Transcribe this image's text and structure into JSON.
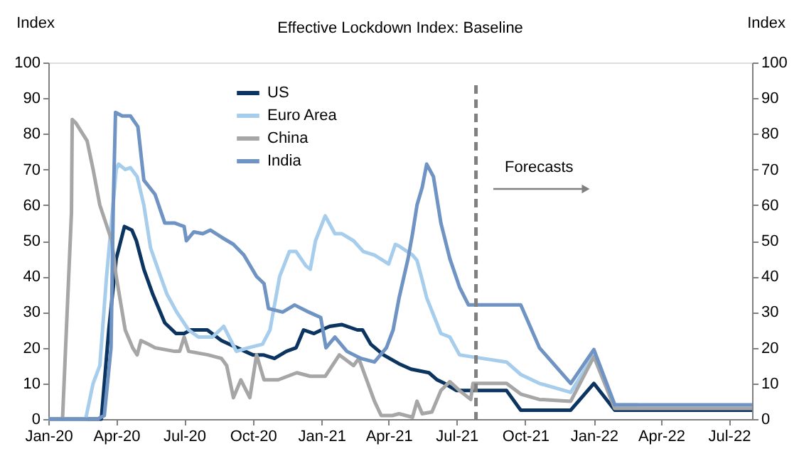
{
  "chart_data": {
    "type": "line",
    "title": "Effective Lockdown Index: Baseline",
    "ylabel": "Index",
    "y2label": "Index",
    "xlim": [
      "2020-01-01",
      "2022-08-01"
    ],
    "xticks": [
      {
        "value": "2020-01-01",
        "label": "Jan-20"
      },
      {
        "value": "2020-04-01",
        "label": "Apr-20"
      },
      {
        "value": "2020-07-01",
        "label": "Jul-20"
      },
      {
        "value": "2020-10-01",
        "label": "Oct-20"
      },
      {
        "value": "2021-01-01",
        "label": "Jan-21"
      },
      {
        "value": "2021-04-01",
        "label": "Apr-21"
      },
      {
        "value": "2021-07-01",
        "label": "Jul-21"
      },
      {
        "value": "2021-10-01",
        "label": "Oct-21"
      },
      {
        "value": "2022-01-01",
        "label": "Jan-22"
      },
      {
        "value": "2022-04-01",
        "label": "Apr-22"
      },
      {
        "value": "2022-07-01",
        "label": "Jul-22"
      }
    ],
    "ylim": [
      0,
      100
    ],
    "yticks": [
      0,
      10,
      20,
      30,
      40,
      50,
      60,
      70,
      80,
      90,
      100
    ],
    "y2lim": [
      0,
      100
    ],
    "y2ticks": [
      0,
      10,
      20,
      30,
      40,
      50,
      60,
      70,
      80,
      90,
      100
    ],
    "grid": false,
    "legend": "top left",
    "marker": "none",
    "line_style": "solid",
    "ref_lines": [
      {
        "axis": "x",
        "value": "2021-07-27",
        "color": "#808080",
        "line_style": "dashed"
      }
    ],
    "annotations": [
      "Forecasts"
    ],
    "series": [
      {
        "name": "US",
        "color": "#0b3560",
        "x": [
          "2020-01-01",
          "2020-03-12",
          "2020-03-22",
          "2020-04-01",
          "2020-04-12",
          "2020-04-22",
          "2020-04-28",
          "2020-05-08",
          "2020-05-20",
          "2020-06-05",
          "2020-06-20",
          "2020-07-01",
          "2020-07-10",
          "2020-08-01",
          "2020-08-20",
          "2020-09-10",
          "2020-10-01",
          "2020-10-15",
          "2020-10-30",
          "2020-11-15",
          "2020-11-28",
          "2020-12-08",
          "2020-12-22",
          "2021-01-01",
          "2021-01-12",
          "2021-01-28",
          "2021-02-18",
          "2021-02-25",
          "2021-03-08",
          "2021-03-25",
          "2021-04-15",
          "2021-05-01",
          "2021-05-25",
          "2021-06-05",
          "2021-06-15",
          "2021-07-01",
          "2021-09-06",
          "2021-09-25",
          "2021-12-01",
          "2022-01-01",
          "2022-01-29",
          "2022-08-01"
        ],
        "values": [
          0,
          0,
          25,
          45,
          54,
          53,
          50,
          42,
          35,
          27,
          24,
          24,
          25,
          25,
          22,
          20,
          18,
          18,
          17,
          19,
          20,
          25,
          24,
          25,
          26,
          26.5,
          25,
          25,
          21,
          18,
          15.5,
          14,
          13,
          11,
          10,
          8,
          8,
          2.5,
          2.5,
          10,
          2.5,
          2.5
        ]
      },
      {
        "name": "Euro Area",
        "color": "#a7cdec",
        "x": [
          "2020-01-01",
          "2020-02-20",
          "2020-03-01",
          "2020-03-10",
          "2020-03-19",
          "2020-04-01",
          "2020-04-04",
          "2020-04-13",
          "2020-04-20",
          "2020-04-29",
          "2020-05-08",
          "2020-05-17",
          "2020-05-27",
          "2020-06-08",
          "2020-06-21",
          "2020-07-07",
          "2020-07-20",
          "2020-08-08",
          "2020-08-23",
          "2020-09-09",
          "2020-09-25",
          "2020-10-14",
          "2020-10-24",
          "2020-11-06",
          "2020-11-19",
          "2020-11-28",
          "2020-12-11",
          "2020-12-17",
          "2020-12-24",
          "2021-01-06",
          "2021-01-19",
          "2021-01-28",
          "2021-02-13",
          "2021-02-26",
          "2021-03-13",
          "2021-04-01",
          "2021-04-10",
          "2021-04-15",
          "2021-05-03",
          "2021-05-09",
          "2021-05-16",
          "2021-05-22",
          "2021-06-10",
          "2021-06-22",
          "2021-07-05",
          "2021-07-20",
          "2021-09-06",
          "2021-09-25",
          "2021-10-20",
          "2021-12-01",
          "2022-01-01",
          "2022-01-29",
          "2022-03-01"
        ],
        "values": [
          0,
          0,
          10,
          15,
          40,
          70,
          71.5,
          70,
          70.5,
          68,
          60,
          48,
          42,
          35,
          30,
          25,
          23,
          23,
          26,
          19,
          20,
          21,
          25,
          40,
          47,
          47,
          43,
          42,
          50,
          57,
          52,
          52,
          50,
          47,
          46,
          43.5,
          49,
          48.5,
          46,
          44.5,
          39,
          34,
          24,
          23,
          18,
          17.5,
          16,
          12.5,
          10,
          7.5,
          18,
          4,
          4
        ]
      },
      {
        "name": "China",
        "color": "#a6a6a6",
        "x": [
          "2020-01-01",
          "2020-01-20",
          "2020-02-01",
          "2020-02-02",
          "2020-02-07",
          "2020-02-16",
          "2020-02-22",
          "2020-03-01",
          "2020-03-10",
          "2020-03-26",
          "2020-04-01",
          "2020-04-13",
          "2020-04-23",
          "2020-04-29",
          "2020-05-04",
          "2020-05-14",
          "2020-05-23",
          "2020-06-18",
          "2020-06-25",
          "2020-07-01",
          "2020-07-07",
          "2020-08-02",
          "2020-08-20",
          "2020-08-27",
          "2020-09-05",
          "2020-09-15",
          "2020-09-27",
          "2020-10-06",
          "2020-10-16",
          "2020-11-04",
          "2020-11-29",
          "2020-12-17",
          "2021-01-06",
          "2021-01-25",
          "2021-02-13",
          "2021-02-20",
          "2021-03-13",
          "2021-03-22",
          "2021-04-06",
          "2021-04-15",
          "2021-05-03",
          "2021-05-09",
          "2021-05-16",
          "2021-05-29",
          "2021-06-10",
          "2021-06-22",
          "2021-07-05",
          "2021-07-20",
          "2021-07-23",
          "2021-09-06",
          "2021-09-25",
          "2021-10-20",
          "2021-12-01",
          "2022-01-01",
          "2022-01-29",
          "2022-08-01"
        ],
        "values": [
          0,
          0,
          58,
          84,
          83,
          80,
          78,
          70,
          60,
          50,
          40,
          25,
          20,
          18,
          22,
          21,
          20,
          19,
          19,
          23,
          19,
          18,
          17,
          15,
          6,
          11,
          6,
          18,
          11,
          11,
          13,
          12,
          12,
          18,
          15,
          17,
          5,
          1,
          1,
          1.5,
          0.5,
          5,
          1.5,
          2,
          8,
          10.5,
          8,
          5.5,
          10,
          10,
          7,
          5.5,
          5,
          17.5,
          3,
          3
        ]
      },
      {
        "name": "India",
        "color": "#6f93c3",
        "x": [
          "2020-01-01",
          "2020-03-07",
          "2020-03-16",
          "2020-03-25",
          "2020-03-28",
          "2020-03-31",
          "2020-04-09",
          "2020-04-20",
          "2020-04-30",
          "2020-05-08",
          "2020-05-23",
          "2020-06-05",
          "2020-06-18",
          "2020-07-01",
          "2020-07-04",
          "2020-07-14",
          "2020-07-26",
          "2020-08-05",
          "2020-08-20",
          "2020-09-05",
          "2020-09-19",
          "2020-10-06",
          "2020-10-16",
          "2020-10-22",
          "2020-11-10",
          "2020-11-26",
          "2020-12-15",
          "2020-12-31",
          "2021-01-07",
          "2021-01-19",
          "2021-02-04",
          "2021-02-23",
          "2021-03-13",
          "2021-03-29",
          "2021-04-07",
          "2021-04-15",
          "2021-04-27",
          "2021-05-03",
          "2021-05-09",
          "2021-05-16",
          "2021-05-22",
          "2021-05-31",
          "2021-06-10",
          "2021-06-22",
          "2021-07-05",
          "2021-07-17",
          "2021-09-25",
          "2021-10-20",
          "2021-12-01",
          "2022-01-01",
          "2022-01-29",
          "2022-08-01"
        ],
        "values": [
          0,
          0,
          1,
          20,
          60,
          86,
          85,
          85,
          82,
          67,
          63,
          55,
          55,
          54,
          50,
          52.5,
          52,
          53,
          51,
          49,
          46,
          40,
          38,
          31,
          30,
          32,
          30,
          28.5,
          20,
          23,
          19,
          17,
          16,
          20,
          25,
          34,
          45,
          52,
          60,
          65,
          71.5,
          68,
          55,
          45,
          37,
          32,
          32,
          20,
          10,
          19.5,
          4,
          4
        ]
      }
    ]
  }
}
